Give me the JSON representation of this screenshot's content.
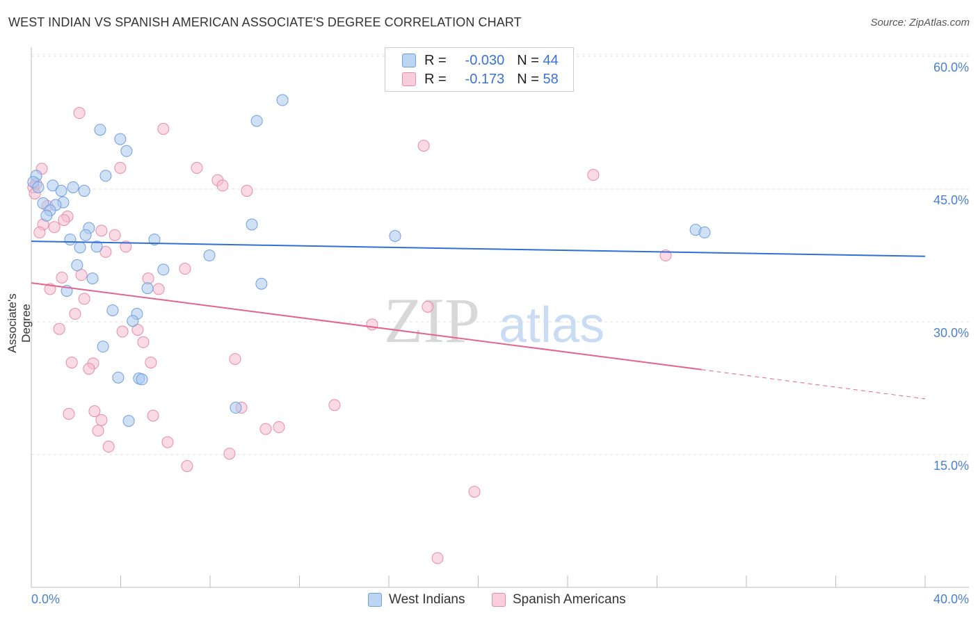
{
  "title": "WEST INDIAN VS SPANISH AMERICAN ASSOCIATE'S DEGREE CORRELATION CHART",
  "source": "Source: ZipAtlas.com",
  "watermark": {
    "zip": "ZIP",
    "atlas": "atlas"
  },
  "legend_box": [
    {
      "r_label": "R =",
      "r": "-0.030",
      "n_label": "N =",
      "n": "44"
    },
    {
      "r_label": "R =",
      "r": "-0.173",
      "n_label": "N =",
      "n": "58"
    }
  ],
  "colors": {
    "blue_fill": "#a9c8ef",
    "blue_stroke": "#6d9fe0",
    "blue_line": "#2f6fd6",
    "pink_fill": "#f6bcd0",
    "pink_stroke": "#e88aa8",
    "pink_line": "#e2638f",
    "axis_text": "#4a7fd4"
  },
  "chart_data": {
    "type": "scatter",
    "title": "WEST INDIAN VS SPANISH AMERICAN ASSOCIATE'S DEGREE CORRELATION CHART",
    "xlabel": "",
    "ylabel": "Associate's Degree",
    "xlim": [
      0,
      40
    ],
    "ylim": [
      0,
      62
    ],
    "x_tick_labels": [
      "0.0%",
      "40.0%"
    ],
    "y_ticks": [
      15,
      30,
      45,
      60
    ],
    "y_tick_labels": [
      "15.0%",
      "30.0%",
      "45.0%",
      "60.0%"
    ],
    "grid": true,
    "legend_position": "bottom-center",
    "series": [
      {
        "name": "West Indians",
        "r": -0.03,
        "n": 44,
        "trend": [
          [
            0,
            39.1
          ],
          [
            40,
            37.4
          ]
        ],
        "points": [
          [
            11.24,
            55.05
          ],
          [
            10.09,
            52.7
          ],
          [
            3.08,
            51.7
          ],
          [
            3.98,
            50.65
          ],
          [
            4.26,
            49.3
          ],
          [
            3.33,
            46.5
          ],
          [
            0.22,
            46.5
          ],
          [
            0.09,
            45.8
          ],
          [
            0.31,
            45.2
          ],
          [
            0.96,
            45.4
          ],
          [
            1.34,
            44.8
          ],
          [
            1.87,
            45.2
          ],
          [
            2.37,
            44.8
          ],
          [
            0.53,
            43.4
          ],
          [
            1.43,
            43.5
          ],
          [
            1.09,
            43.2
          ],
          [
            0.84,
            42.6
          ],
          [
            0.68,
            42.0
          ],
          [
            2.58,
            40.6
          ],
          [
            2.43,
            39.8
          ],
          [
            1.74,
            39.3
          ],
          [
            2.18,
            38.4
          ],
          [
            2.93,
            38.5
          ],
          [
            5.51,
            39.3
          ],
          [
            9.87,
            41.0
          ],
          [
            16.28,
            39.7
          ],
          [
            29.73,
            40.4
          ],
          [
            30.13,
            40.1
          ],
          [
            7.97,
            37.5
          ],
          [
            2.05,
            36.4
          ],
          [
            5.91,
            35.9
          ],
          [
            2.74,
            34.9
          ],
          [
            5.2,
            33.8
          ],
          [
            10.3,
            34.3
          ],
          [
            1.59,
            33.5
          ],
          [
            3.64,
            31.3
          ],
          [
            4.73,
            30.9
          ],
          [
            4.54,
            30.1
          ],
          [
            3.21,
            27.2
          ],
          [
            3.89,
            23.7
          ],
          [
            4.82,
            23.6
          ],
          [
            4.95,
            23.5
          ],
          [
            9.15,
            20.3
          ],
          [
            4.36,
            18.8
          ]
        ]
      },
      {
        "name": "Spanish Americans",
        "r": -0.173,
        "n": 58,
        "trend": [
          [
            0,
            34.4
          ],
          [
            30.0,
            24.6
          ]
        ],
        "trend_dashed": [
          [
            30.0,
            24.6
          ],
          [
            40,
            21.3
          ]
        ],
        "points": [
          [
            2.15,
            53.6
          ],
          [
            5.91,
            51.8
          ],
          [
            17.56,
            49.9
          ],
          [
            0.47,
            47.3
          ],
          [
            3.98,
            47.4
          ],
          [
            7.41,
            47.4
          ],
          [
            8.34,
            46.0
          ],
          [
            8.56,
            45.4
          ],
          [
            9.65,
            44.8
          ],
          [
            25.15,
            46.6
          ],
          [
            0.09,
            45.2
          ],
          [
            0.16,
            44.5
          ],
          [
            0.72,
            43.1
          ],
          [
            1.62,
            41.9
          ],
          [
            1.46,
            41.5
          ],
          [
            0.53,
            41.0
          ],
          [
            1.03,
            40.7
          ],
          [
            0.37,
            40.1
          ],
          [
            3.14,
            40.3
          ],
          [
            3.74,
            39.8
          ],
          [
            3.33,
            37.9
          ],
          [
            4.23,
            38.5
          ],
          [
            6.88,
            36.0
          ],
          [
            28.39,
            37.5
          ],
          [
            1.37,
            35.0
          ],
          [
            2.24,
            35.3
          ],
          [
            5.23,
            34.9
          ],
          [
            5.7,
            33.7
          ],
          [
            0.84,
            33.7
          ],
          [
            2.37,
            32.6
          ],
          [
            1.96,
            30.9
          ],
          [
            17.74,
            31.7
          ],
          [
            15.25,
            29.7
          ],
          [
            1.25,
            29.2
          ],
          [
            4.08,
            28.9
          ],
          [
            4.76,
            29.1
          ],
          [
            5.01,
            27.7
          ],
          [
            1.81,
            25.4
          ],
          [
            2.77,
            25.3
          ],
          [
            2.58,
            24.7
          ],
          [
            5.35,
            25.4
          ],
          [
            9.12,
            25.8
          ],
          [
            1.68,
            19.6
          ],
          [
            2.83,
            19.9
          ],
          [
            3.14,
            18.9
          ],
          [
            5.45,
            19.4
          ],
          [
            2.99,
            17.7
          ],
          [
            13.57,
            20.6
          ],
          [
            9.4,
            20.3
          ],
          [
            10.49,
            17.9
          ],
          [
            11.08,
            18.1
          ],
          [
            3.46,
            15.9
          ],
          [
            6.1,
            16.4
          ],
          [
            8.87,
            15.1
          ],
          [
            6.97,
            13.7
          ],
          [
            19.83,
            10.8
          ],
          [
            18.18,
            3.3
          ],
          [
            0.22,
            45.6
          ]
        ]
      }
    ]
  }
}
